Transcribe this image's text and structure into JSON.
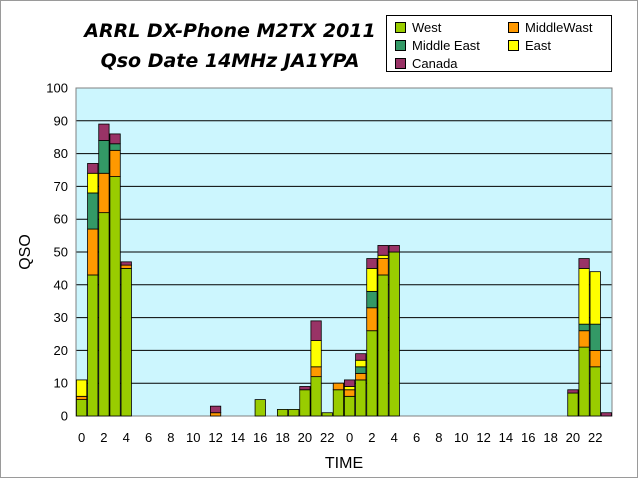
{
  "chart_data": {
    "type": "bar",
    "stacked": true,
    "title_line1": "ARRL DX-Phone M2TX 2011",
    "title_line2": "Qso Date 14MHz JA1YPA",
    "xlabel": "TIME",
    "ylabel": "QSO",
    "ylim": [
      0,
      100
    ],
    "yticks": [
      "0",
      "10",
      "20",
      "30",
      "40",
      "50",
      "60",
      "70",
      "80",
      "90",
      "100"
    ],
    "grid": true,
    "legend_position": "top-right",
    "plot_background": "#ccf6fe",
    "hours": [
      0,
      1,
      2,
      3,
      4,
      5,
      6,
      7,
      8,
      9,
      10,
      11,
      12,
      13,
      14,
      15,
      16,
      17,
      18,
      19,
      20,
      21,
      22,
      23,
      0,
      1,
      2,
      3,
      4,
      5,
      6,
      7,
      8,
      9,
      10,
      11,
      12,
      13,
      14,
      15,
      16,
      17,
      18,
      19,
      20,
      21,
      22,
      23
    ],
    "xtick_labels": [
      "0",
      "2",
      "4",
      "6",
      "8",
      "10",
      "12",
      "14",
      "16",
      "18",
      "20",
      "22",
      "0",
      "2",
      "4",
      "6",
      "8",
      "10",
      "12",
      "14",
      "16",
      "18",
      "20",
      "22"
    ],
    "series": [
      {
        "name": "West",
        "color": "#99cc00",
        "values": [
          5,
          43,
          62,
          73,
          45,
          0,
          0,
          0,
          0,
          0,
          0,
          0,
          0,
          0,
          0,
          0,
          5,
          0,
          2,
          2,
          8,
          12,
          1,
          8,
          6,
          11,
          26,
          43,
          50,
          0,
          0,
          0,
          0,
          0,
          0,
          0,
          0,
          0,
          0,
          0,
          0,
          0,
          0,
          0,
          7,
          21,
          15,
          0
        ]
      },
      {
        "name": "MiddleWast",
        "color": "#ff9900",
        "values": [
          1,
          14,
          12,
          8,
          1,
          0,
          0,
          0,
          0,
          0,
          0,
          0,
          1,
          0,
          0,
          0,
          0,
          0,
          0,
          0,
          0,
          3,
          0,
          2,
          2,
          2,
          7,
          5,
          0,
          0,
          0,
          0,
          0,
          0,
          0,
          0,
          0,
          0,
          0,
          0,
          0,
          0,
          0,
          0,
          0,
          5,
          5,
          0
        ]
      },
      {
        "name": "Middle East",
        "color": "#339966",
        "values": [
          0,
          11,
          10,
          2,
          0,
          0,
          0,
          0,
          0,
          0,
          0,
          0,
          0,
          0,
          0,
          0,
          0,
          0,
          0,
          0,
          0,
          0,
          0,
          0,
          0,
          2,
          5,
          0,
          0,
          0,
          0,
          0,
          0,
          0,
          0,
          0,
          0,
          0,
          0,
          0,
          0,
          0,
          0,
          0,
          0,
          2,
          8,
          0
        ]
      },
      {
        "name": "East",
        "color": "#ffff00",
        "values": [
          5,
          6,
          0,
          0,
          0,
          0,
          0,
          0,
          0,
          0,
          0,
          0,
          0,
          0,
          0,
          0,
          0,
          0,
          0,
          0,
          0,
          8,
          0,
          0,
          1,
          2,
          7,
          1,
          0,
          0,
          0,
          0,
          0,
          0,
          0,
          0,
          0,
          0,
          0,
          0,
          0,
          0,
          0,
          0,
          0,
          17,
          16,
          0
        ]
      },
      {
        "name": "Canada",
        "color": "#993366",
        "values": [
          0,
          3,
          5,
          3,
          1,
          0,
          0,
          0,
          0,
          0,
          0,
          0,
          2,
          0,
          0,
          0,
          0,
          0,
          0,
          0,
          1,
          6,
          0,
          0,
          2,
          2,
          3,
          3,
          2,
          0,
          0,
          0,
          0,
          0,
          0,
          0,
          0,
          0,
          0,
          0,
          0,
          0,
          0,
          0,
          1,
          3,
          0,
          1
        ]
      }
    ]
  }
}
